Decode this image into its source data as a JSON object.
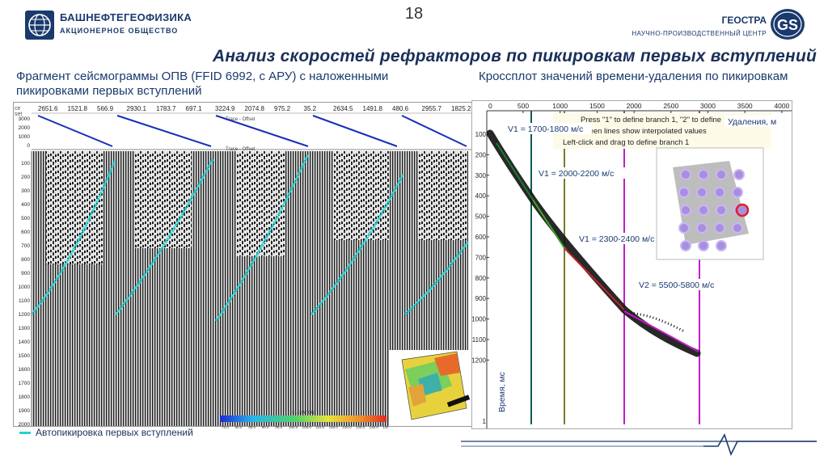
{
  "header": {
    "company_left": "БАШНЕФТЕГЕОФИЗИКА",
    "company_left_sub": "АКЦИОНЕРНОЕ ОБЩЕСТВО",
    "company_right": "ГЕОСТРА",
    "company_right_sub": "НАУЧНО-ПРОИЗВОДСТВЕННЫЙ ЦЕНТР",
    "company_right_mark": "GS",
    "page_number": "18"
  },
  "title": "Анализ скоростей рефракторов по пикировкам первых вступлений",
  "captions": {
    "left": "Фрагмент сейсмограммы ОПВ (FFID 6992, с АРУ) с наложенными пикировками первых вступлений",
    "right": "Кроссплот значений времени-удаления по пикировкам"
  },
  "seismogram": {
    "offset_labels": [
      "2651.6",
      "1521.8",
      "566.9",
      "2930.1",
      "1783.7",
      "697.1",
      "3224.9",
      "2074.8",
      "975.2",
      "35.2",
      "2634.5",
      "1491.8",
      "480.6",
      "2955.7",
      "1825.2"
    ],
    "y_ticks": [
      "100",
      "200",
      "300",
      "400",
      "500",
      "600",
      "700",
      "800",
      "900",
      "1000",
      "1100",
      "1200",
      "1300",
      "1400",
      "1500",
      "1600",
      "1700",
      "1800",
      "1900",
      "2000"
    ],
    "header_ticks": [
      "3000",
      "2000",
      "1000",
      "0"
    ],
    "header_labels": [
      "Trace - Offset",
      "Trace - Offset"
    ],
    "corner_label_top": "ce",
    "corner_label_bottom": "set",
    "inset_scale_title": "ELEVATION",
    "inset_scale_ticks": [
      "75.0",
      "80.0",
      "85.0",
      "90.0",
      "95.0",
      "100.0",
      "105.0",
      "110.0",
      "115.0",
      "120.0",
      "125.0",
      "130.0",
      "135.0"
    ],
    "legend": "Автопикировка первых вступлений",
    "pick_color": "#23d1d3"
  },
  "crossplot": {
    "x_ticks": [
      "500",
      "1000",
      "1500",
      "2000",
      "2500",
      "3000",
      "3500",
      "4000"
    ],
    "x_tick_prefix": "0",
    "y_ticks": [
      "100",
      "200",
      "300",
      "400",
      "500",
      "600",
      "700",
      "800",
      "900",
      "1000",
      "1100",
      "1200"
    ],
    "y_tick_extra": "1",
    "hint_1": "Press \"1\" to define branch 1, \"2\" to define",
    "hint_2": "Green lines show interpolated values",
    "hint_3": "Left-click and drag to define branch 1",
    "x_axis_label": "Удаления, м",
    "y_axis_label": "Время, мс",
    "branches": [
      "V1 = 1700-1800 м/с",
      "V1 = 2000-2200 м/с",
      "V1 = 2300-2400 м/с",
      "V2 = 5500-5800 м/с"
    ]
  }
}
